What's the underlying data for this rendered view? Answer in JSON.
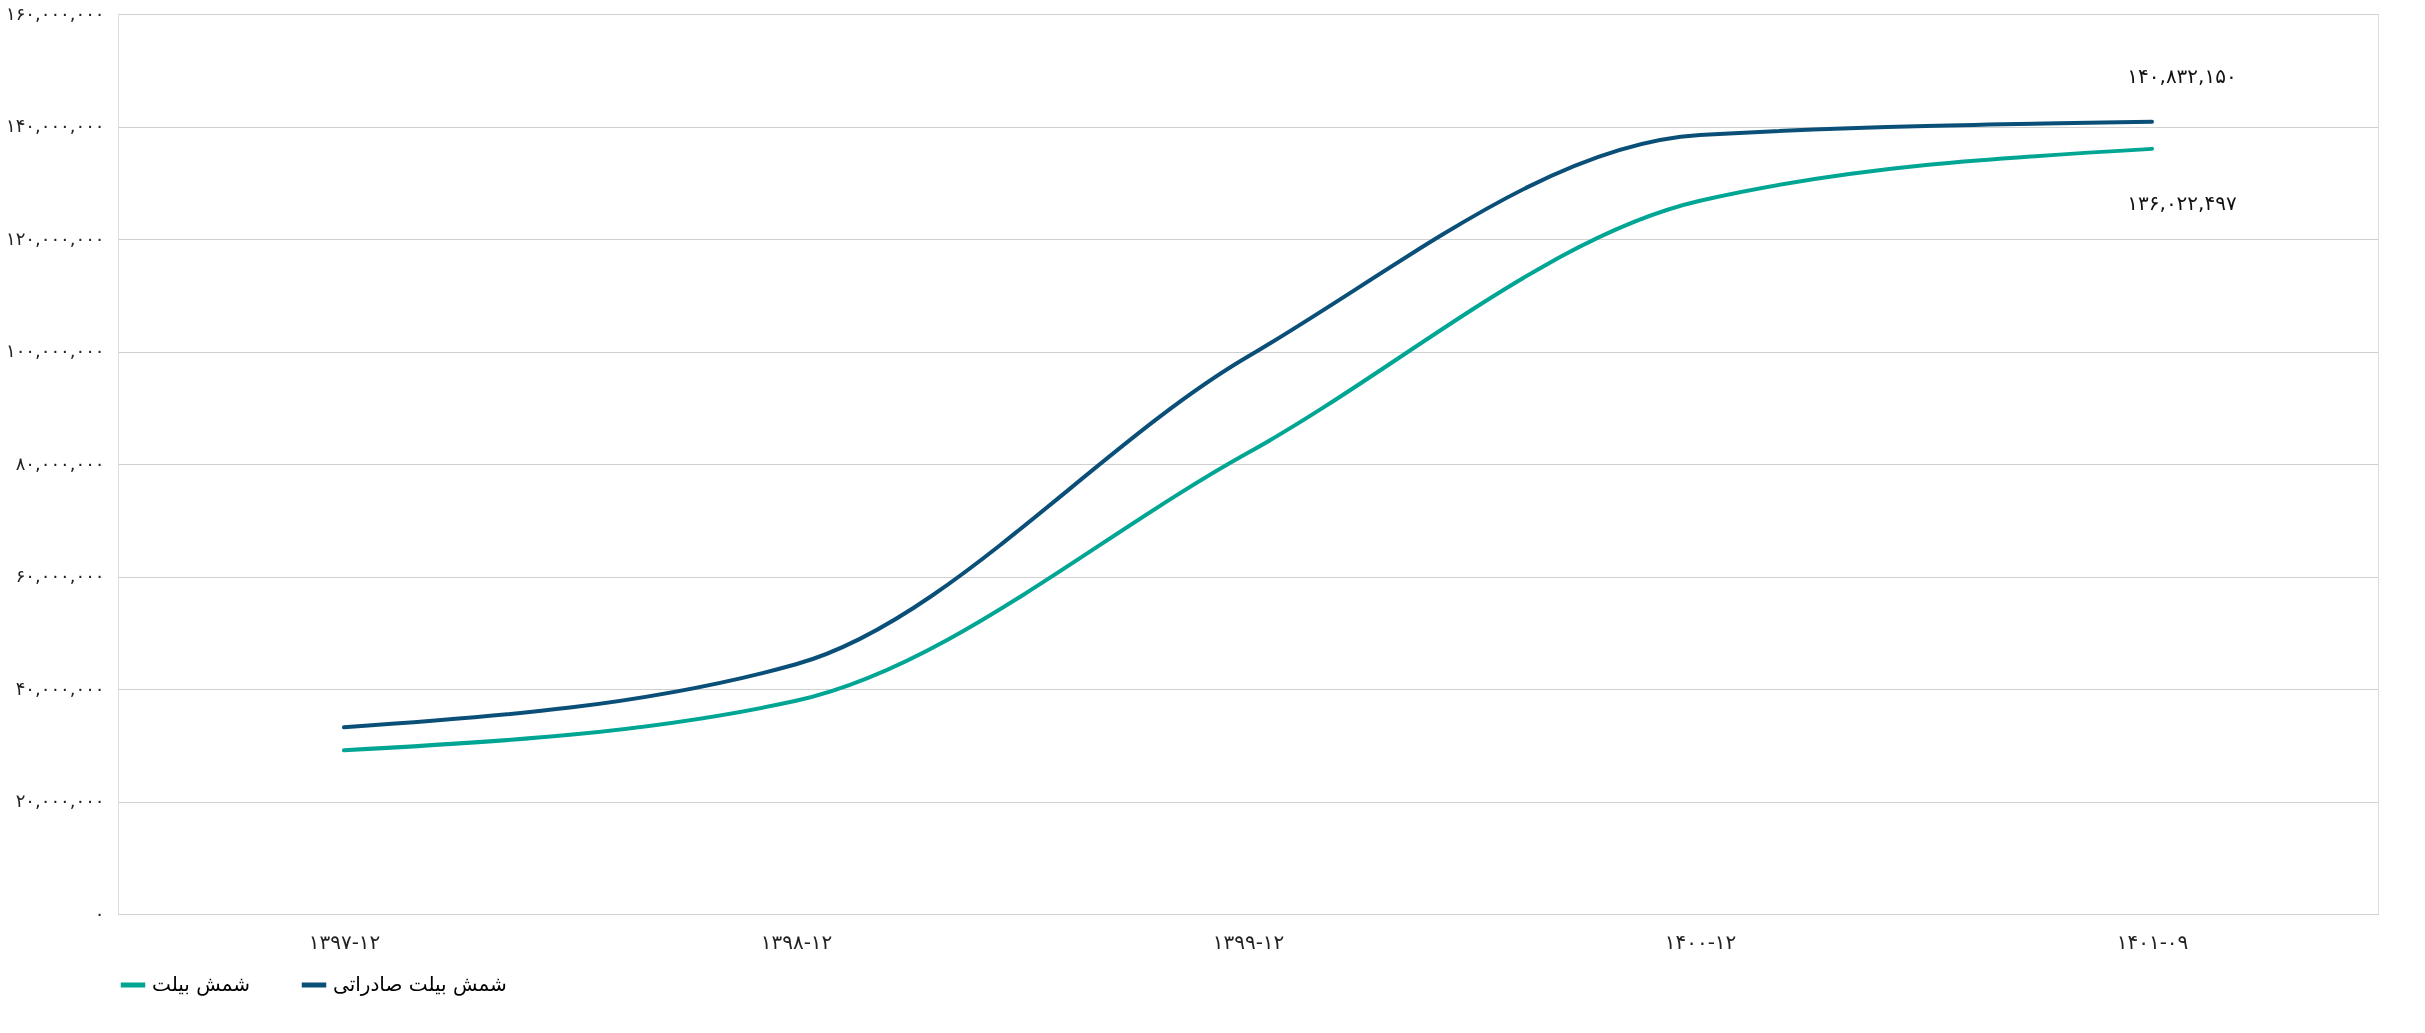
{
  "chart_data": {
    "type": "line",
    "categories": [
      "۱۳۹۷-۱۲",
      "۱۳۹۸-۱۲",
      "۱۳۹۹-۱۲",
      "۱۴۰۰-۱۲",
      "۱۴۰۱-۰۹"
    ],
    "series": [
      {
        "name": "شمش بیلت",
        "color": "#00a693",
        "values": [
          29100000,
          37900000,
          82000000,
          126800000,
          136022497
        ],
        "value_labels": [
          null,
          null,
          null,
          null,
          "۱۳۶,۰۲۲,۴۹۷"
        ]
      },
      {
        "name": "شمش بیلت صادراتی",
        "color": "#0a4f78",
        "values": [
          33200000,
          44400000,
          99100000,
          138500000,
          140832150
        ],
        "value_labels": [
          null,
          null,
          null,
          null,
          "۱۴۰,۸۳۲,۱۵۰"
        ]
      }
    ],
    "ylim": [
      0,
      160000000
    ],
    "yticks": [
      {
        "value": 0,
        "label": "۰"
      },
      {
        "value": 20000000,
        "label": "۲۰,۰۰۰,۰۰۰"
      },
      {
        "value": 40000000,
        "label": "۴۰,۰۰۰,۰۰۰"
      },
      {
        "value": 60000000,
        "label": "۶۰,۰۰۰,۰۰۰"
      },
      {
        "value": 80000000,
        "label": "۸۰,۰۰۰,۰۰۰"
      },
      {
        "value": 100000000,
        "label": "۱۰۰,۰۰۰,۰۰۰"
      },
      {
        "value": 120000000,
        "label": "۱۲۰,۰۰۰,۰۰۰"
      },
      {
        "value": 140000000,
        "label": "۱۴۰,۰۰۰,۰۰۰"
      },
      {
        "value": 160000000,
        "label": "۱۶۰,۰۰۰,۰۰۰"
      }
    ],
    "grid": "y",
    "legend": "bottom",
    "marker": "none",
    "line_style": "solid"
  }
}
